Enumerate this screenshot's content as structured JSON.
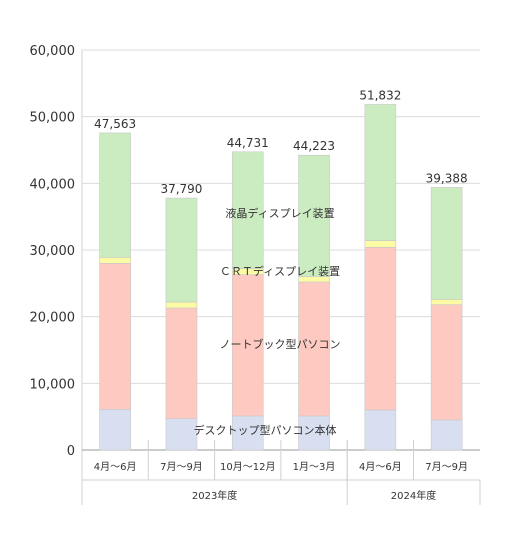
{
  "chart_data": {
    "type": "bar",
    "stacked": true,
    "categories": [
      "4月～6月",
      "7月～9月",
      "10月～12月",
      "1月～3月",
      "4月～6月",
      "7月～9月"
    ],
    "groups": [
      {
        "label": "2023年度",
        "categories": 4
      },
      {
        "label": "2024年度",
        "categories": 2
      }
    ],
    "series": [
      {
        "name": "デスクトップ型パソコン本体",
        "values": [
          6100,
          4700,
          5100,
          5100,
          6000,
          4500
        ],
        "color": "#d8dff0"
      },
      {
        "name": "ノートブック型パソコン",
        "values": [
          21900,
          16600,
          21200,
          20100,
          24400,
          17300
        ],
        "color": "#fdc9c1"
      },
      {
        "name": "ＣＲＴディスプレイ装置",
        "values": [
          900,
          900,
          900,
          800,
          1000,
          800
        ],
        "color": "#fbfba5"
      },
      {
        "name": "液晶ディスプレイ装置",
        "values": [
          18663,
          15590,
          17531,
          18223,
          20432,
          16788
        ],
        "color": "#cbebc1"
      }
    ],
    "totals": [
      "47,563",
      "37,790",
      "44,731",
      "44,223",
      "51,832",
      "39,388"
    ],
    "highlight_index": 5,
    "highlight_color": "#e8382f",
    "y_ticks": [
      "0",
      "10,000",
      "20,000",
      "30,000",
      "40,000",
      "50,000",
      "60,000"
    ],
    "ylim": [
      0,
      60000
    ],
    "grid": true,
    "legend": "inline labels"
  }
}
